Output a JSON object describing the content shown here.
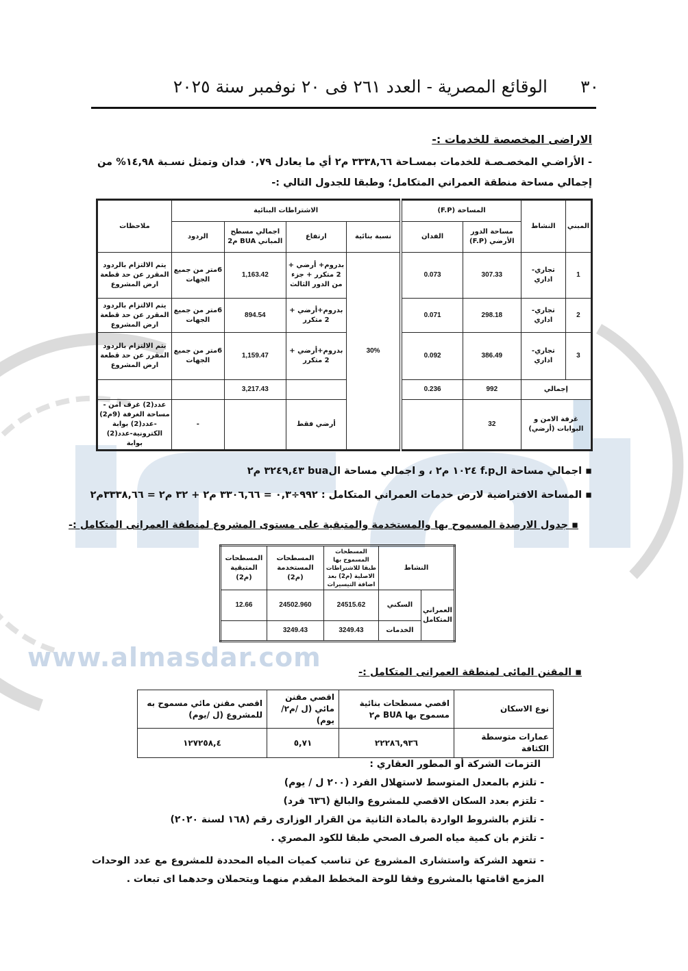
{
  "header": {
    "page_number": "٣٠",
    "title": "الوقائع المصرية - العدد ٢٦١ فى ٢٠ نوفمبر سنة ٢٠٢٥"
  },
  "section1": {
    "title": "الاراضى المخصصة للخدمات :-",
    "paragraph": "- الأراضـي المخصـصـة للخدمات بمسـاحة ٣٣٣٨,٦٦ م٢ أي ما يعادل ٠,٧٩ فدان وتمثل نسـبة ١٤,٩٨% من إجمالي مساحة منطقة العمراني المتكامل؛ وطبقا للجدول التالي :-"
  },
  "table1": {
    "headers": {
      "building": "المبني",
      "activity": "النشاط",
      "area_group": "المساحة (F.P)",
      "ground_floor": "مساحة الدور الأرضي (F.P)",
      "feddan": "الفدان",
      "coverage": "نسبة بنائية",
      "conditions_group": "الاشتراطات البنائية",
      "height": "ارتفاع",
      "bua": "اجمالي مسطح المباني BUA م2",
      "setbacks": "الردود",
      "notes": "ملاحظات"
    },
    "coverage_value": "30%",
    "rows": [
      {
        "building": "1",
        "activity": "تجاري-اداري",
        "fp": "307.33",
        "feddan": "0.073",
        "height": "بدروم+ أرضي + 2 متكرر + جزء من الدور الثالث",
        "bua": "1,163.42",
        "setbacks": "6متر من جميع الجهات",
        "notes": "يتم الالتزام بالردود المقرر عن حد قطعة ارض المشروع"
      },
      {
        "building": "2",
        "activity": "تجاري-اداري",
        "fp": "298.18",
        "feddan": "0.071",
        "height": "بدروم+أرضي + 2 متكرر",
        "bua": "894.54",
        "setbacks": "6متر من جميع الجهات",
        "notes": "يتم الالتزام بالردود المقرر عن حد قطعة ارض المشروع"
      },
      {
        "building": "3",
        "activity": "تجاري-اداري",
        "fp": "386.49",
        "feddan": "0.092",
        "height": "بدروم+أرضي + 2 متكرر",
        "bua": "1,159.47",
        "setbacks": "6متر من جميع الجهات",
        "notes": "يتم الالتزام بالردود المقرر عن حد قطعة ارض المشروع"
      }
    ],
    "total": {
      "label": "إجمالي",
      "fp": "992",
      "feddan": "0.236",
      "bua": "3,217.43"
    },
    "security": {
      "label": "غرفة الامن و البوابات (أرضي)",
      "fp": "32",
      "height": "أرضي فقط",
      "setbacks": "-",
      "notes": "عدد(2) غرف امن - مساحة الغرفة (9م2) -عدد(2) بوابة الكترونية-عدد(2) بوابة"
    }
  },
  "bullets": [
    "▪ اجمالي مساحة الf.p ١٠٢٤ م٢ ، و اجمالي مساحة الbua ٣٢٤٩,٤٣ م٢",
    "▪ المساحة الافتراضية لارض خدمات العمراني المتكامل : ٩٩٢÷٠,٣ = ٣٣٠٦,٦٦ م٢ + ٣٢ م٢ = ٣٣٣٨,٦٦م٢",
    "▪ جدول الارصدة المسموح بها والمستخدمة والمتبقية على مستوى المشروع لمنطقة العمرانى المتكامل :-"
  ],
  "table2": {
    "headers": {
      "activity": "النشاط",
      "allowed": "المسطحات المسموح بها طبقا للاشتراطات الاصلية (م2) بعد اضافة التيسيرات",
      "used": "المسطحات المستخدمة (م2)",
      "remaining": "المسطحات المتبقية (م2)"
    },
    "group": "العمراني المتكامل",
    "rows": [
      {
        "activity": "السكني",
        "allowed": "24515.62",
        "used": "24502.960",
        "remaining": "12.66"
      },
      {
        "activity": "الخدمات",
        "allowed": "3249.43",
        "used": "3249.43",
        "remaining": ""
      }
    ]
  },
  "section3": {
    "title": "▪ المقنن المائى لمنطقة العمرانى المتكامل :-"
  },
  "table3": {
    "headers": [
      "نوع الاسكان",
      "اقصي مسطحات بنائية مسموح بها BUA م٢",
      "اقصي مقنن مائي (ل /م٢/يوم)",
      "اقصي مقنن مائي مسموح به للمشروع (ل /يوم)"
    ],
    "row": [
      "عمارات متوسطة الكثافة",
      "٢٢٢٨٦,٩٣٦",
      "٥,٧١",
      "١٢٧٢٥٨,٤"
    ]
  },
  "commitments": {
    "title": "التزمات الشركة أو المطور العقاري :",
    "items": [
      "-   تلتزم بالمعدل المتوسط لاستهلال الفرد (٢٠٠ ل / يوم)",
      "-   تلتزم بعدد السكان الاقصي للمشروع والبالغ (٦٣٦ فرد)",
      "-   تلتزم بالشروط الواردة بالمادة الثانية من القرار الوزارى رقم (١٦٨ لسنة ٢٠٢٠)",
      "-   تلتزم بان كمية مياه الصرف الصحي طبقا للكود المصري .",
      "-   تتعهد الشركة واستشارى المشروع عن تناسب كميات المياه المحددة للمشروع مع عدد الوحدات المزمع اقامتها بالمشروع وفقا للوحة المخطط المقدم منهما ويتحملان وحدهما اى تبعات ."
    ]
  },
  "watermark": {
    "url": "www.almasdar.com",
    "logo": "المصدر"
  },
  "colors": {
    "watermark": "#c9d7e8",
    "ink": "#111111"
  }
}
